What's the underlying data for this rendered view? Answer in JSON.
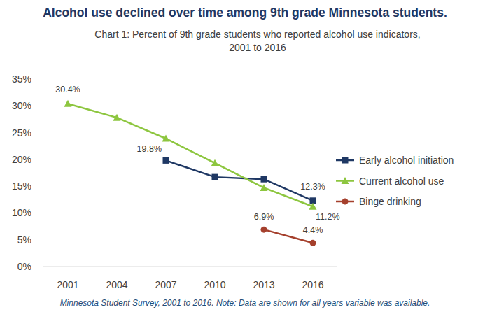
{
  "chart_data": {
    "type": "line",
    "title": "Alcohol use declined over time among 9th grade Minnesota students.",
    "subtitle": "Chart 1: Percent of 9th grade students who reported alcohol use indicators,\n2001 to 2016",
    "note": "Minnesota Student Survey, 2001 to 2016. Note: Data are shown for all years variable was available.",
    "categories": [
      "2001",
      "2004",
      "2007",
      "2010",
      "2013",
      "2016"
    ],
    "ylim": [
      0,
      35
    ],
    "yticks": [
      {
        "value": 0,
        "label": "0%"
      },
      {
        "value": 5,
        "label": "5%"
      },
      {
        "value": 10,
        "label": "10%"
      },
      {
        "value": 15,
        "label": "15%"
      },
      {
        "value": 20,
        "label": "20%"
      },
      {
        "value": 25,
        "label": "25%"
      },
      {
        "value": 30,
        "label": "30%"
      },
      {
        "value": 35,
        "label": "35%"
      }
    ],
    "grid": false,
    "legend": "right",
    "data_labels": true,
    "series": [
      {
        "name": "Early alcohol initiation",
        "color": "#1f3864",
        "marker": "square",
        "values": [
          null,
          null,
          19.8,
          16.7,
          16.3,
          12.3
        ],
        "value_labels": [
          null,
          null,
          "19.8%",
          null,
          null,
          "12.3%"
        ]
      },
      {
        "name": "Current alcohol use",
        "color": "#8dc63f",
        "marker": "triangle",
        "values": [
          30.4,
          27.8,
          23.9,
          19.3,
          14.7,
          11.2
        ],
        "value_labels": [
          "30.4%",
          null,
          null,
          null,
          null,
          "11.2%"
        ]
      },
      {
        "name": "Binge drinking",
        "color": "#a5402d",
        "marker": "circle",
        "values": [
          null,
          null,
          null,
          null,
          6.9,
          4.4
        ],
        "value_labels": [
          null,
          null,
          null,
          null,
          "6.9%",
          "4.4%"
        ]
      }
    ]
  }
}
